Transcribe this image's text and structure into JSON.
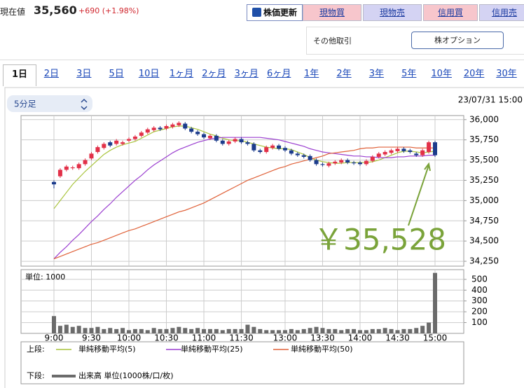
{
  "header": {
    "label": "現在値",
    "price": "35,560",
    "change": "+690 (+1.98%)"
  },
  "buttons": [
    "株価更新",
    "現物買",
    "現物売",
    "信用買",
    "信用売"
  ],
  "other": {
    "label": "その他取引",
    "button": "株オプション"
  },
  "tabs": [
    "1日",
    "2日",
    "3日",
    "5日",
    "10日",
    "1ヶ月",
    "2ヶ月",
    "3ヶ月",
    "6ヶ月",
    "1年",
    "2年",
    "3年",
    "5年",
    "10年",
    "20年",
    "30年"
  ],
  "selected_tab": 0,
  "period_select": "5分足",
  "timestamp": "23/07/31 15:00",
  "annotation": "￥35,528",
  "legend": {
    "upper": "上段:",
    "lower": "下段:"
  },
  "chart_data": [
    {
      "type": "candlestick",
      "categories": [
        "9:00",
        null,
        null,
        null,
        null,
        null,
        "9:30",
        null,
        null,
        null,
        null,
        null,
        "10:00",
        null,
        null,
        null,
        null,
        null,
        "10:30",
        null,
        null,
        null,
        null,
        null,
        "11:00",
        null,
        null,
        null,
        null,
        null,
        "11:30",
        null,
        null,
        null,
        null,
        null,
        null,
        "13:00",
        null,
        null,
        null,
        null,
        null,
        "13:30",
        null,
        null,
        null,
        null,
        null,
        "14:00",
        null,
        null,
        null,
        null,
        null,
        "14:30",
        null,
        null,
        null,
        null,
        null,
        "15:00"
      ],
      "open": [
        35230,
        35300,
        35380,
        35400,
        35400,
        35450,
        35520,
        35600,
        35650,
        35720,
        35700,
        35700,
        35740,
        35760,
        35800,
        35840,
        35870,
        35900,
        35890,
        35910,
        35930,
        35950,
        35890,
        35850,
        35820,
        35770,
        35800,
        35740,
        35700,
        35730,
        35760,
        35720,
        35700,
        35620,
        35600,
        35650,
        35680,
        35650,
        35620,
        35580,
        35560,
        35550,
        35500,
        35450,
        35430,
        35460,
        35470,
        35500,
        35470,
        35470,
        35450,
        35490,
        35540,
        35570,
        35590,
        35610,
        35640,
        35620,
        35580,
        35560,
        35600,
        35720
      ],
      "high": [
        35250,
        35400,
        35440,
        35430,
        35470,
        35520,
        35600,
        35680,
        35720,
        35740,
        35760,
        35740,
        35780,
        35810,
        35860,
        35900,
        35920,
        35920,
        35940,
        35960,
        35980,
        35970,
        35910,
        35870,
        35840,
        35820,
        35820,
        35760,
        35750,
        35780,
        35780,
        35740,
        35720,
        35640,
        35680,
        35700,
        35700,
        35670,
        35640,
        35600,
        35580,
        35570,
        35520,
        35470,
        35480,
        35500,
        35520,
        35520,
        35490,
        35490,
        35510,
        35560,
        35600,
        35620,
        35640,
        35660,
        35660,
        35640,
        35600,
        35640,
        35740,
        35740
      ],
      "low": [
        35150,
        35280,
        35360,
        35380,
        35380,
        35430,
        35500,
        35580,
        35630,
        35660,
        35680,
        35680,
        35720,
        35740,
        35780,
        35820,
        35850,
        35860,
        35870,
        35890,
        35910,
        35870,
        35830,
        35800,
        35760,
        35750,
        35720,
        35680,
        35680,
        35710,
        35700,
        35680,
        35600,
        35580,
        35580,
        35630,
        35620,
        35600,
        35560,
        35540,
        35520,
        35480,
        35430,
        35420,
        35410,
        35440,
        35450,
        35450,
        35440,
        35430,
        35430,
        35470,
        35520,
        35550,
        35570,
        35590,
        35590,
        35580,
        35540,
        35540,
        35580,
        35540
      ],
      "close": [
        35200,
        35380,
        35420,
        35410,
        35450,
        35500,
        35580,
        35660,
        35700,
        35680,
        35740,
        35720,
        35760,
        35790,
        35840,
        35880,
        35900,
        35880,
        35920,
        35940,
        35960,
        35890,
        35850,
        35820,
        35780,
        35800,
        35740,
        35700,
        35730,
        35760,
        35720,
        35700,
        35620,
        35600,
        35660,
        35680,
        35640,
        35620,
        35580,
        35560,
        35540,
        35500,
        35450,
        35440,
        35460,
        35480,
        35500,
        35470,
        35460,
        35450,
        35490,
        35540,
        35580,
        35600,
        35620,
        35640,
        35610,
        35600,
        35560,
        35620,
        35720,
        35560
      ],
      "up_color": "#e23048",
      "down_color": "#1c3c8c",
      "series": [
        {
          "name": "単純移動平均(5)",
          "color": "#a9c43c",
          "values": [
            34900,
            35000,
            35100,
            35200,
            35280,
            35360,
            35430,
            35500,
            35570,
            35620,
            35660,
            35690,
            35710,
            35730,
            35770,
            35810,
            35850,
            35870,
            35890,
            35910,
            35920,
            35920,
            35900,
            35880,
            35850,
            35820,
            35800,
            35770,
            35750,
            35740,
            35740,
            35720,
            35700,
            35680,
            35660,
            35650,
            35640,
            35640,
            35630,
            35600,
            35570,
            35530,
            35500,
            35480,
            35470,
            35460,
            35460,
            35470,
            35470,
            35470,
            35470,
            35480,
            35500,
            35530,
            35560,
            35590,
            35610,
            35610,
            35600,
            35590,
            35600,
            35610
          ]
        },
        {
          "name": "単純移動平均(25)",
          "color": "#9b3fd0",
          "values": [
            34280,
            34360,
            34430,
            34510,
            34580,
            34660,
            34740,
            34810,
            34890,
            34960,
            35040,
            35110,
            35180,
            35250,
            35310,
            35380,
            35440,
            35490,
            35540,
            35590,
            35630,
            35660,
            35690,
            35720,
            35740,
            35760,
            35770,
            35780,
            35780,
            35780,
            35780,
            35780,
            35780,
            35780,
            35770,
            35760,
            35750,
            35730,
            35710,
            35690,
            35670,
            35640,
            35620,
            35600,
            35590,
            35580,
            35570,
            35560,
            35550,
            35550,
            35540,
            35540,
            35530,
            35530,
            35530,
            35540,
            35540,
            35550,
            35550,
            35550,
            35560,
            35560
          ]
        },
        {
          "name": "単純移動平均(50)",
          "color": "#e0623a",
          "values": [
            34280,
            34310,
            34340,
            34370,
            34400,
            34430,
            34460,
            34480,
            34510,
            34540,
            34570,
            34600,
            34630,
            34650,
            34680,
            34710,
            34740,
            34770,
            34800,
            34830,
            34860,
            34880,
            34910,
            34940,
            34970,
            35010,
            35050,
            35090,
            35130,
            35170,
            35210,
            35250,
            35280,
            35310,
            35340,
            35370,
            35400,
            35420,
            35450,
            35470,
            35490,
            35510,
            35530,
            35550,
            35580,
            35590,
            35600,
            35610,
            35620,
            35640,
            35650,
            35650,
            35660,
            35660,
            35660,
            35660,
            35660,
            35660,
            35650,
            35650,
            35650,
            35650
          ]
        }
      ],
      "ylim": [
        34190,
        36050
      ],
      "yticks": [
        {
          "value": 34250,
          "label": "34,250"
        },
        {
          "value": 34500,
          "label": "34,500"
        },
        {
          "value": 34750,
          "label": "34,750"
        },
        {
          "value": 35000,
          "label": "35,000"
        },
        {
          "value": 35250,
          "label": "35,250"
        },
        {
          "value": 35500,
          "label": "35,500"
        },
        {
          "value": 35750,
          "label": "35,750"
        },
        {
          "value": 36000,
          "label": "36,000"
        }
      ],
      "grid": true
    },
    {
      "type": "bar",
      "title": "単位: 1000",
      "name": "出来高 単位(1000株/口/枚)",
      "color": "#6b6b6b",
      "values": [
        160,
        70,
        80,
        60,
        70,
        50,
        50,
        60,
        40,
        50,
        40,
        50,
        30,
        40,
        40,
        30,
        50,
        40,
        40,
        50,
        60,
        50,
        40,
        50,
        40,
        40,
        40,
        30,
        40,
        40,
        40,
        80,
        60,
        40,
        30,
        30,
        30,
        30,
        40,
        30,
        40,
        50,
        60,
        50,
        40,
        40,
        30,
        40,
        40,
        30,
        30,
        40,
        40,
        50,
        40,
        30,
        40,
        40,
        50,
        70,
        100,
        560
      ],
      "ylim": [
        0,
        590
      ],
      "yticks": [
        100,
        200,
        300,
        400,
        500
      ],
      "grid": true
    }
  ]
}
